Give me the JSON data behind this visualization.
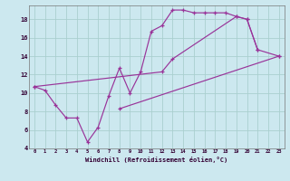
{
  "xlabel": "Windchill (Refroidissement éolien,°C)",
  "bg_color": "#cce8ef",
  "line_color": "#993399",
  "grid_color": "#aacfcf",
  "xlim": [
    -0.5,
    23.5
  ],
  "ylim": [
    4,
    19.5
  ],
  "xticks": [
    0,
    1,
    2,
    3,
    4,
    5,
    6,
    7,
    8,
    9,
    10,
    11,
    12,
    13,
    14,
    15,
    16,
    17,
    18,
    19,
    20,
    21,
    22,
    23
  ],
  "yticks": [
    4,
    6,
    8,
    10,
    12,
    14,
    16,
    18
  ],
  "series": [
    {
      "x": [
        0,
        1,
        2,
        3,
        4,
        5,
        6,
        7,
        8,
        9,
        10,
        11,
        12,
        13,
        14,
        15,
        16,
        17,
        18,
        19,
        20,
        21
      ],
      "y": [
        10.7,
        10.3,
        8.7,
        7.3,
        7.3,
        4.7,
        6.3,
        9.7,
        12.7,
        10.0,
        12.3,
        16.7,
        17.3,
        19.0,
        19.0,
        18.7,
        18.7,
        18.7,
        18.7,
        18.3,
        18.0,
        14.7
      ]
    },
    {
      "x": [
        0,
        12,
        13,
        19,
        20,
        21,
        23
      ],
      "y": [
        10.7,
        12.3,
        13.7,
        18.3,
        18.0,
        14.7,
        14.0
      ]
    },
    {
      "x": [
        8,
        23
      ],
      "y": [
        8.3,
        14.0
      ]
    }
  ]
}
